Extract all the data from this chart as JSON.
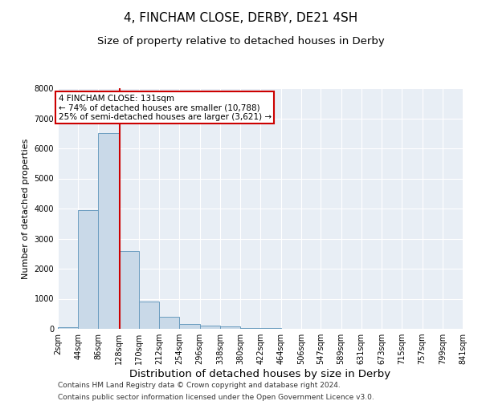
{
  "title": "4, FINCHAM CLOSE, DERBY, DE21 4SH",
  "subtitle": "Size of property relative to detached houses in Derby",
  "xlabel": "Distribution of detached houses by size in Derby",
  "ylabel": "Number of detached properties",
  "annotation_line1": "4 FINCHAM CLOSE: 131sqm",
  "annotation_line2": "← 74% of detached houses are smaller (10,788)",
  "annotation_line3": "25% of semi-detached houses are larger (3,621) →",
  "property_size": 131,
  "bin_edges": [
    2,
    44,
    86,
    128,
    170,
    212,
    254,
    296,
    338,
    380,
    422,
    464,
    506,
    547,
    589,
    631,
    673,
    715,
    757,
    799,
    841
  ],
  "bar_heights": [
    50,
    3950,
    6500,
    2600,
    900,
    400,
    150,
    100,
    75,
    40,
    20,
    10,
    5,
    3,
    2,
    1,
    1,
    0,
    0,
    0
  ],
  "bar_color": "#c9d9e8",
  "bar_edge_color": "#6a9cbf",
  "vline_color": "#cc0000",
  "vline_x": 131,
  "annotation_box_color": "#cc0000",
  "annotation_fill": "white",
  "background_color": "#e8eef5",
  "ylim": [
    0,
    8000
  ],
  "yticks": [
    0,
    1000,
    2000,
    3000,
    4000,
    5000,
    6000,
    7000,
    8000
  ],
  "footer1": "Contains HM Land Registry data © Crown copyright and database right 2024.",
  "footer2": "Contains public sector information licensed under the Open Government Licence v3.0.",
  "title_fontsize": 11,
  "subtitle_fontsize": 9.5,
  "xlabel_fontsize": 9.5,
  "ylabel_fontsize": 8,
  "tick_fontsize": 7,
  "annotation_fontsize": 7.5,
  "footer_fontsize": 6.5
}
